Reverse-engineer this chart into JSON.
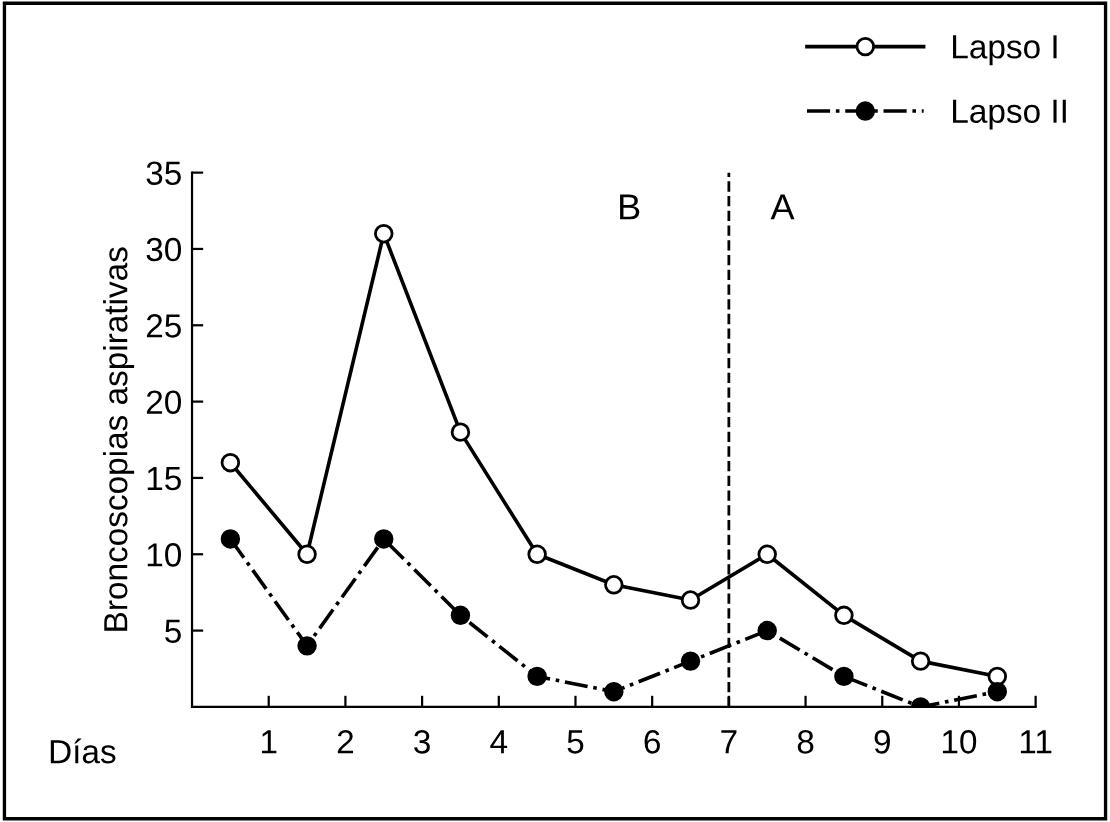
{
  "chart_data": {
    "type": "line",
    "ylabel": "Broncoscopias aspirativas",
    "xlabel": "Días",
    "x": [
      0.5,
      1.5,
      2.5,
      3.5,
      4.5,
      5.5,
      6.5,
      7.5,
      8.5,
      9.5,
      10.5
    ],
    "series": [
      {
        "name": "Lapso I",
        "color": "#000000",
        "marker": "circle",
        "line_style": "solid",
        "values": [
          16,
          10,
          31,
          18,
          10,
          8,
          7,
          10,
          6,
          3,
          2
        ]
      },
      {
        "name": "Lapso II",
        "color": "#000000",
        "marker": "circle",
        "line_style": "dashdot",
        "values": [
          11,
          4,
          11,
          6,
          2,
          1,
          3,
          5,
          2,
          0,
          1
        ]
      }
    ],
    "xlim": [
      0,
      11
    ],
    "xticks": [
      1,
      2,
      3,
      4,
      5,
      6,
      7,
      8,
      9,
      10,
      11
    ],
    "ylim": [
      0,
      35
    ],
    "yticks": [
      5,
      10,
      15,
      20,
      25,
      30,
      35
    ],
    "ref_lines": [
      {
        "axis": "x",
        "value": 7,
        "color": "#000000",
        "line_style": "dashed"
      }
    ],
    "annotations": [
      "B",
      "A"
    ],
    "legend": "top right",
    "grid": false
  }
}
